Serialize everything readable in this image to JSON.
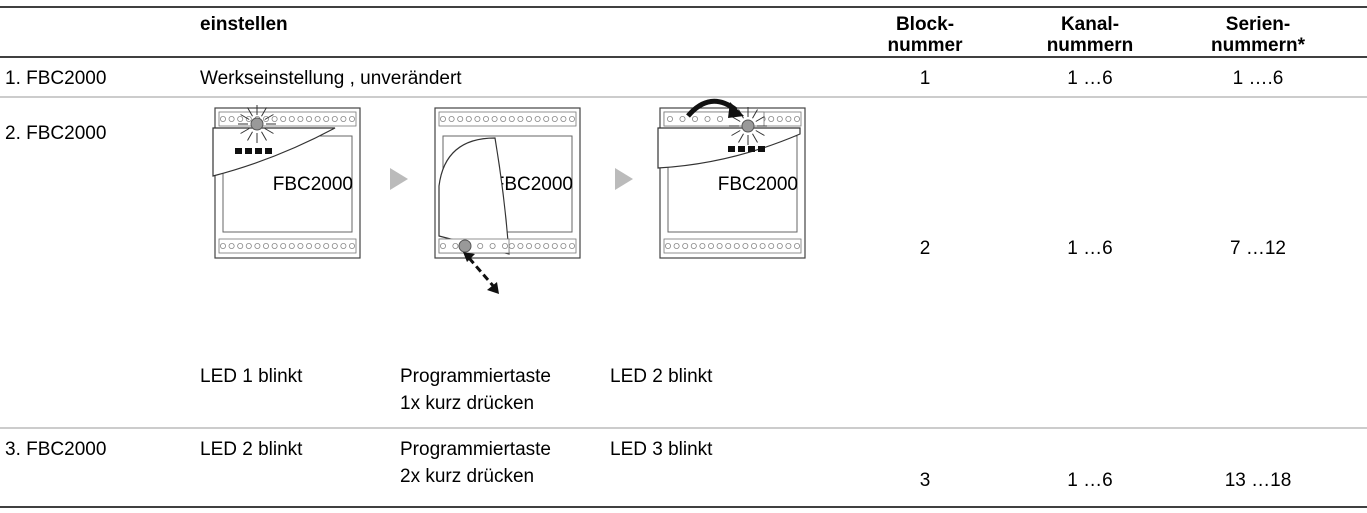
{
  "header": {
    "step": "einstellen",
    "block": [
      "Block-",
      "nummer"
    ],
    "kanal": [
      "Kanal-",
      "nummern"
    ],
    "serien": [
      "Serien-",
      "nummern*"
    ]
  },
  "rows": [
    {
      "device": "1. FBC2000",
      "description": "Werkseinstellung , unverändert",
      "block": "1",
      "kanal": "1 …6",
      "serien": "1 ….6"
    },
    {
      "device": "2. FBC2000",
      "images": [
        "FBC2000",
        "FBC2000",
        "FBC2000"
      ],
      "captions": [
        [
          "LED 1 blinkt"
        ],
        [
          "Programmiertaste",
          "1x kurz drücken"
        ],
        [
          "LED 2 blinkt"
        ]
      ],
      "block": "2",
      "kanal": "1 …6",
      "serien": "7 …12"
    },
    {
      "device": "3. FBC2000",
      "captions": [
        [
          "LED 2 blinkt"
        ],
        [
          "Programmiertaste",
          "2x kurz drücken"
        ],
        [
          "LED 3 blinkt"
        ]
      ],
      "block": "3",
      "kanal": "1 …6",
      "serien": "13 …18"
    }
  ]
}
